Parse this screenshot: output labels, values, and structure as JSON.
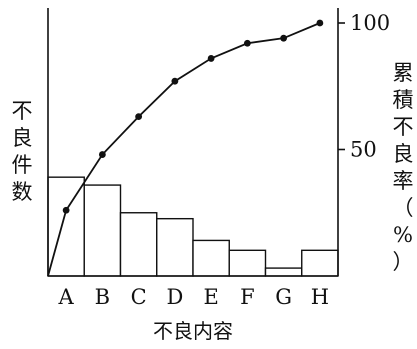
{
  "chart_data": {
    "type": "bar",
    "subtype": "pareto",
    "categories": [
      "A",
      "B",
      "C",
      "D",
      "E",
      "F",
      "G",
      "H"
    ],
    "series": [
      {
        "type": "bar",
        "axis": "left",
        "values": [
          25,
          23,
          16,
          14.5,
          9,
          6.5,
          2,
          6.5
        ]
      },
      {
        "type": "line",
        "axis": "right",
        "values": [
          26,
          48,
          63,
          77,
          86,
          92,
          94,
          100
        ]
      }
    ],
    "title": "",
    "xlabel": "不良内容",
    "ylabel_left": "不良件数",
    "ylabel_right": "累積不良率（%）",
    "right_ticks": [
      "50",
      "100"
    ],
    "right_tick_values": [
      50,
      100
    ],
    "y_right_range": [
      0,
      100
    ],
    "y_left_range": [
      0,
      64
    ],
    "grid": false,
    "legend": "none",
    "colors": {
      "bar_fill": "#ffffff",
      "line": "#111111",
      "axes": "#111111"
    }
  }
}
